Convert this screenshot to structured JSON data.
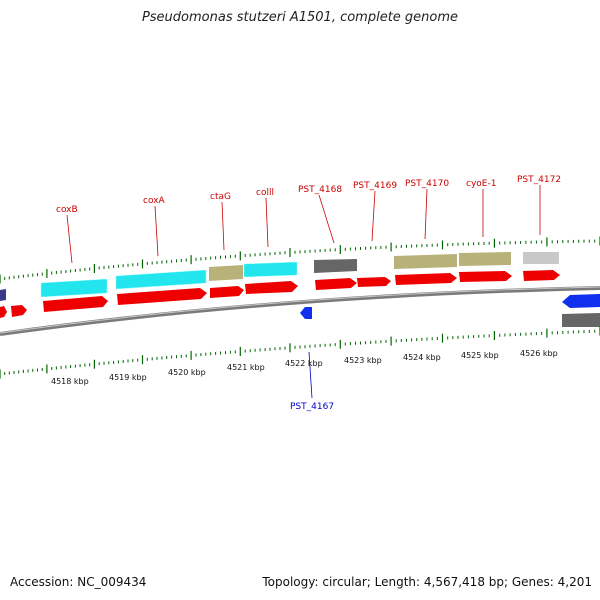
{
  "title": "Pseudomonas stutzeri A1501, complete genome",
  "accession_text": "Accession: NC_009434",
  "summary_text": "Topology: circular; Length: 4,567,418 bp; Genes: 4,201",
  "colors": {
    "cds_forward": "#ff0000",
    "cds_reverse": "#0000ff",
    "label_forward": "#cc0000",
    "label_reverse": "#0000cc",
    "tick": "#006600",
    "backbone": "#888888",
    "cyan": "#22e5ee",
    "khaki": "#b8b27a",
    "darkgray": "#666666",
    "lightgray": "#c8c8c8",
    "navy": "#3a3a8c"
  },
  "kbp_labels": [
    "4518 kbp",
    "4519 kbp",
    "4520 kbp",
    "4521 kbp",
    "4522 kbp",
    "4523 kbp",
    "4524 kbp",
    "4525 kbp",
    "4526 kbp"
  ],
  "gene_labels": [
    {
      "name": "coxB",
      "strand": "forward"
    },
    {
      "name": "coxA",
      "strand": "forward"
    },
    {
      "name": "ctaG",
      "strand": "forward"
    },
    {
      "name": "colll",
      "strand": "forward"
    },
    {
      "name": "PST_4168",
      "strand": "forward"
    },
    {
      "name": "PST_4169",
      "strand": "forward"
    },
    {
      "name": "PST_4170",
      "strand": "forward"
    },
    {
      "name": "cyoE-1",
      "strand": "forward"
    },
    {
      "name": "PST_4172",
      "strand": "forward"
    },
    {
      "name": "PST_4167",
      "strand": "reverse"
    }
  ]
}
